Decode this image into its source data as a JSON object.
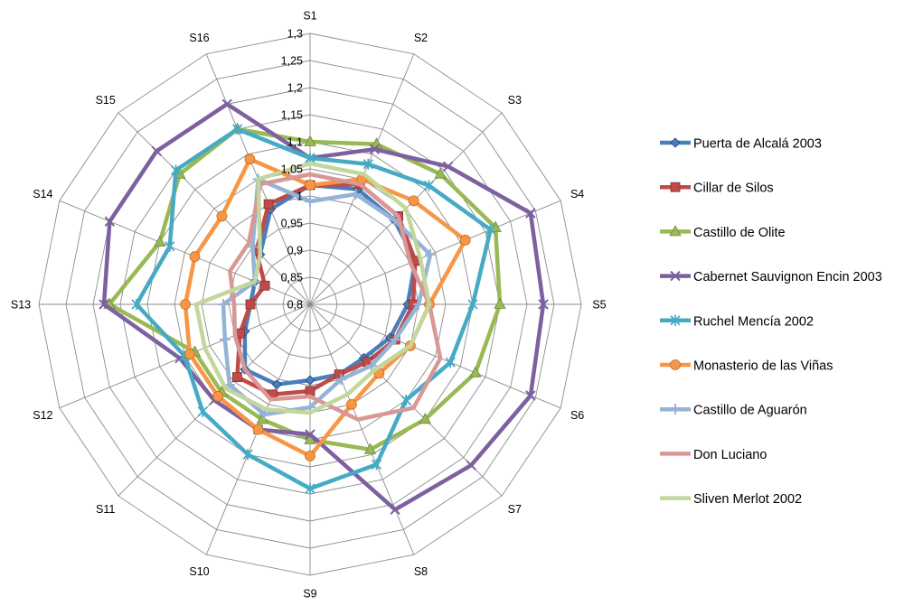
{
  "chart_data": {
    "type": "radar",
    "title": "",
    "axes": [
      "S1",
      "S2",
      "S3",
      "S4",
      "S5",
      "S6",
      "S7",
      "S8",
      "S9",
      "S10",
      "S11",
      "S12",
      "S13",
      "S14",
      "S15",
      "S16"
    ],
    "rlim": [
      0.8,
      1.3
    ],
    "ticks": [
      0.8,
      0.85,
      0.9,
      0.95,
      1,
      1.05,
      1.1,
      1.15,
      1.2,
      1.25,
      1.3
    ],
    "tick_labels": [
      "0,8",
      "0,85",
      "0,9",
      "0,95",
      "1",
      "1,05",
      "1,1",
      "1,15",
      "1,2",
      "1,25",
      "1,3"
    ],
    "legend_position": "right",
    "grid": true,
    "series": [
      {
        "name": "Puerta de Alcalá 2003",
        "color": "#4a7ebb",
        "marker": "diamond",
        "values": [
          1.02,
          1.03,
          1.02,
          1.01,
          0.98,
          0.96,
          0.94,
          0.94,
          0.94,
          0.96,
          0.97,
          0.93,
          0.91,
          0.91,
          0.93,
          0.99
        ]
      },
      {
        "name": "Cillar de Silos",
        "color": "#be4b48",
        "marker": "square",
        "values": [
          1.02,
          1.04,
          1.03,
          1.01,
          0.99,
          0.97,
          0.95,
          0.94,
          0.96,
          0.98,
          0.99,
          0.94,
          0.91,
          0.89,
          0.94,
          1.0
        ]
      },
      {
        "name": "Castillo de Olite",
        "color": "#98b954",
        "marker": "triangle",
        "values": [
          1.1,
          1.12,
          1.14,
          1.17,
          1.15,
          1.13,
          1.1,
          1.09,
          1.05,
          1.03,
          1.03,
          1.03,
          1.17,
          1.1,
          1.14,
          1.15
        ]
      },
      {
        "name": "Cabernet Sauvignon Encin 2003",
        "color": "#7d60a0",
        "marker": "x",
        "values": [
          1.07,
          1.11,
          1.16,
          1.24,
          1.23,
          1.24,
          1.22,
          1.21,
          1.04,
          1.05,
          1.05,
          1.06,
          1.18,
          1.2,
          1.2,
          1.2
        ]
      },
      {
        "name": "Ruchel Mencía 2002",
        "color": "#46aac5",
        "marker": "star",
        "values": [
          1.07,
          1.08,
          1.11,
          1.16,
          1.1,
          1.08,
          1.05,
          1.12,
          1.14,
          1.1,
          1.08,
          1.05,
          1.12,
          1.08,
          1.15,
          1.15
        ]
      },
      {
        "name": "Monasterio de las Viñas",
        "color": "#f79646",
        "marker": "circle",
        "values": [
          1.02,
          1.05,
          1.07,
          1.11,
          1.02,
          1.0,
          0.98,
          1.0,
          1.08,
          1.05,
          1.04,
          1.04,
          1.03,
          1.03,
          1.03,
          1.09
        ]
      },
      {
        "name": "Castillo de Aguarón",
        "color": "#95b3d7",
        "marker": "plus",
        "values": [
          0.99,
          1.02,
          1.02,
          1.04,
          1.0,
          0.97,
          0.96,
          0.95,
          0.99,
          1.02,
          1.01,
          0.97,
          0.96,
          0.91,
          0.95,
          1.05
        ]
      },
      {
        "name": "Don Luciano",
        "color": "#d99795",
        "marker": "none",
        "values": [
          1.04,
          1.04,
          1.03,
          1.0,
          1.02,
          1.06,
          1.07,
          1.03,
          0.97,
          0.99,
          0.97,
          0.95,
          0.94,
          0.96,
          0.96,
          1.04
        ]
      },
      {
        "name": "Sliven Merlot 2002",
        "color": "#c3d69b",
        "marker": "none",
        "values": [
          1.06,
          1.06,
          1.05,
          1.02,
          1.02,
          1.0,
          0.97,
          0.98,
          1.0,
          1.01,
          1.02,
          1.01,
          1.01,
          0.91,
          0.93,
          1.05
        ]
      }
    ]
  }
}
